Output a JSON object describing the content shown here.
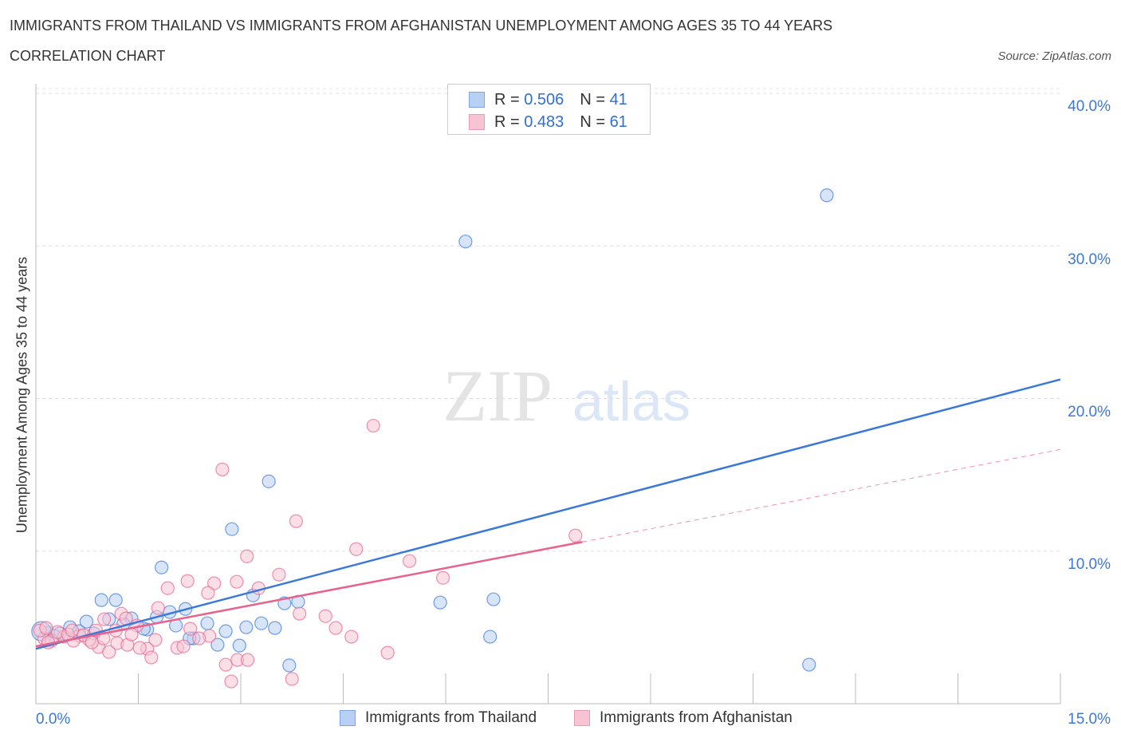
{
  "chart_data": {
    "type": "scatter",
    "title": "IMMIGRANTS FROM THAILAND VS IMMIGRANTS FROM AFGHANISTAN UNEMPLOYMENT AMONG AGES 35 TO 44 YEARS",
    "subtitle": "CORRELATION CHART",
    "source": "Source: ZipAtlas.com",
    "xlabel": "",
    "ylabel": "Unemployment Among Ages 35 to 44 years",
    "xlim": [
      0,
      15
    ],
    "ylim": [
      0,
      40
    ],
    "x_tick_labels": [
      "0.0%",
      "15.0%"
    ],
    "y_tick_labels": [
      "10.0%",
      "20.0%",
      "30.0%",
      "40.0%"
    ],
    "y_ticks": [
      10,
      20,
      30,
      40
    ],
    "grid": true,
    "legend_placement": "top-center",
    "series": [
      {
        "name": "Immigrants from Thailand",
        "color": "#3b78d8",
        "fill": "#b8d0f4",
        "R": "0.506",
        "N": "41",
        "trend": [
          [
            0,
            3.6
          ],
          [
            15,
            21.25
          ]
        ],
        "points": [
          [
            11.58,
            33.32
          ],
          [
            6.29,
            30.29
          ],
          [
            3.41,
            14.57
          ],
          [
            2.87,
            11.44
          ],
          [
            1.84,
            8.93
          ],
          [
            0.96,
            6.79
          ],
          [
            1.17,
            6.79
          ],
          [
            3.18,
            7.1
          ],
          [
            2.19,
            6.21
          ],
          [
            1.96,
            6.01
          ],
          [
            1.77,
            5.69
          ],
          [
            1.4,
            5.59
          ],
          [
            1.07,
            5.54
          ],
          [
            0.74,
            5.38
          ],
          [
            0.5,
            5.01
          ],
          [
            1.28,
            5.22
          ],
          [
            1.63,
            4.86
          ],
          [
            2.51,
            5.27
          ],
          [
            2.78,
            4.75
          ],
          [
            2.05,
            5.12
          ],
          [
            3.08,
            5.01
          ],
          [
            3.3,
            5.27
          ],
          [
            3.5,
            4.96
          ],
          [
            3.64,
            6.58
          ],
          [
            3.84,
            6.68
          ],
          [
            5.92,
            6.63
          ],
          [
            6.7,
            6.84
          ],
          [
            6.65,
            4.39
          ],
          [
            2.31,
            4.28
          ],
          [
            2.66,
            3.86
          ],
          [
            2.98,
            3.81
          ],
          [
            3.71,
            2.51
          ],
          [
            11.32,
            2.56
          ],
          [
            0.85,
            4.6
          ],
          [
            0.35,
            4.6
          ],
          [
            0.18,
            4.65
          ],
          [
            0.08,
            4.75
          ],
          [
            0.27,
            4.44
          ],
          [
            1.58,
            4.91
          ],
          [
            0.63,
            4.75
          ],
          [
            2.25,
            4.28
          ]
        ]
      },
      {
        "name": "Immigrants from Afghanistan",
        "color": "#e8628c",
        "fill": "#f8c4d3",
        "R": "0.483",
        "N": "61",
        "trend": [
          [
            0,
            3.76
          ],
          [
            8.0,
            10.6
          ]
        ],
        "trend_dashed": [
          [
            8.0,
            10.6
          ],
          [
            15,
            16.66
          ]
        ],
        "points": [
          [
            4.94,
            18.22
          ],
          [
            2.73,
            15.35
          ],
          [
            3.81,
            11.96
          ],
          [
            3.09,
            9.66
          ],
          [
            4.69,
            10.13
          ],
          [
            5.47,
            9.35
          ],
          [
            7.9,
            11.02
          ],
          [
            5.96,
            8.25
          ],
          [
            3.56,
            8.46
          ],
          [
            2.22,
            8.04
          ],
          [
            2.61,
            7.89
          ],
          [
            2.94,
            7.99
          ],
          [
            1.93,
            7.57
          ],
          [
            2.52,
            7.26
          ],
          [
            3.26,
            7.57
          ],
          [
            1.79,
            6.27
          ],
          [
            3.86,
            5.9
          ],
          [
            1.25,
            5.9
          ],
          [
            1.32,
            5.59
          ],
          [
            1.0,
            5.54
          ],
          [
            4.24,
            5.74
          ],
          [
            2.26,
            4.91
          ],
          [
            4.39,
            4.96
          ],
          [
            4.62,
            4.39
          ],
          [
            1.48,
            5.12
          ],
          [
            1.75,
            4.18
          ],
          [
            2.54,
            4.44
          ],
          [
            1.19,
            3.97
          ],
          [
            1.34,
            3.86
          ],
          [
            1.63,
            3.6
          ],
          [
            0.92,
            3.71
          ],
          [
            1.07,
            3.39
          ],
          [
            1.52,
            3.66
          ],
          [
            2.07,
            3.66
          ],
          [
            2.16,
            3.76
          ],
          [
            1.69,
            3.03
          ],
          [
            2.78,
            2.56
          ],
          [
            2.95,
            2.87
          ],
          [
            3.1,
            2.87
          ],
          [
            2.86,
            1.46
          ],
          [
            3.75,
            1.62
          ],
          [
            5.15,
            3.34
          ],
          [
            0.64,
            4.44
          ],
          [
            0.78,
            4.18
          ],
          [
            0.41,
            4.39
          ],
          [
            0.55,
            4.13
          ],
          [
            0.12,
            4.28
          ],
          [
            0.23,
            4.13
          ],
          [
            0.32,
            4.7
          ],
          [
            0.88,
            4.8
          ],
          [
            0.99,
            4.28
          ],
          [
            0.47,
            4.54
          ],
          [
            0.06,
            4.8
          ],
          [
            0.15,
            4.96
          ],
          [
            0.53,
            4.8
          ],
          [
            0.7,
            4.49
          ],
          [
            0.18,
            4.02
          ],
          [
            1.17,
            4.8
          ],
          [
            1.4,
            4.54
          ],
          [
            0.82,
            4.02
          ],
          [
            2.39,
            4.28
          ]
        ]
      }
    ]
  },
  "legend": {
    "r_label": "R = ",
    "n_label": "N = "
  },
  "watermark": "ZIPatlas"
}
